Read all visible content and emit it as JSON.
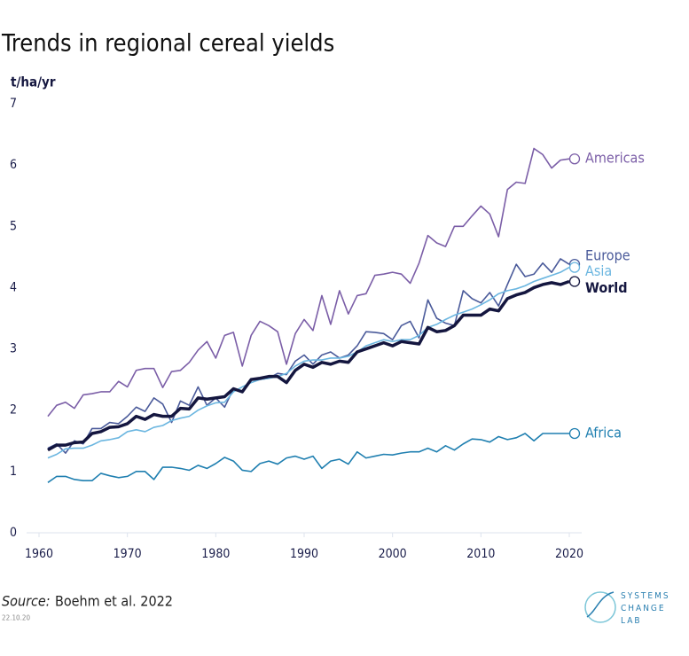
{
  "chart_data": {
    "type": "line",
    "title": "Trends in regional cereal yields",
    "y_label": "t/ha/yr",
    "source_label": "Source:",
    "source": "Boehm et al. 2022",
    "date": "22.10.20",
    "logo": [
      "SYSTEMS",
      "CHANGE",
      "LAB"
    ],
    "xlim": [
      1960,
      2020
    ],
    "xticks": [
      1960,
      1970,
      1980,
      1990,
      2000,
      2010,
      2020
    ],
    "ylim": [
      0,
      7
    ],
    "yticks": [
      0,
      1,
      2,
      3,
      4,
      5,
      6,
      7
    ],
    "grid": false,
    "x": [
      1961,
      1962,
      1963,
      1964,
      1965,
      1966,
      1967,
      1968,
      1969,
      1970,
      1971,
      1972,
      1973,
      1974,
      1975,
      1976,
      1977,
      1978,
      1979,
      1980,
      1981,
      1982,
      1983,
      1984,
      1985,
      1986,
      1987,
      1988,
      1989,
      1990,
      1991,
      1992,
      1993,
      1994,
      1995,
      1996,
      1997,
      1998,
      1999,
      2000,
      2001,
      2002,
      2003,
      2004,
      2005,
      2006,
      2007,
      2008,
      2009,
      2010,
      2011,
      2012,
      2013,
      2014,
      2015,
      2016,
      2017,
      2018,
      2019,
      2020
    ],
    "series": [
      {
        "name": "Americas",
        "color": "#7b5ea7",
        "values": [
          1.9,
          2.08,
          2.13,
          2.03,
          2.25,
          2.27,
          2.3,
          2.3,
          2.47,
          2.38,
          2.65,
          2.68,
          2.68,
          2.37,
          2.63,
          2.65,
          2.78,
          2.98,
          3.12,
          2.85,
          3.22,
          3.27,
          2.72,
          3.22,
          3.45,
          3.38,
          3.28,
          2.75,
          3.25,
          3.48,
          3.3,
          3.87,
          3.4,
          3.95,
          3.57,
          3.87,
          3.9,
          4.2,
          4.22,
          4.25,
          4.22,
          4.07,
          4.4,
          4.85,
          4.73,
          4.67,
          5.0,
          5.0,
          5.17,
          5.33,
          5.2,
          4.83,
          5.6,
          5.72,
          5.7,
          6.27,
          6.17,
          5.95,
          6.08,
          6.1
        ]
      },
      {
        "name": "Europe",
        "color": "#4a5a9a",
        "values": [
          1.38,
          1.45,
          1.3,
          1.5,
          1.45,
          1.7,
          1.7,
          1.8,
          1.78,
          1.9,
          2.05,
          1.98,
          2.2,
          2.1,
          1.8,
          2.15,
          2.08,
          2.38,
          2.08,
          2.2,
          2.05,
          2.35,
          2.3,
          2.5,
          2.5,
          2.52,
          2.6,
          2.58,
          2.8,
          2.9,
          2.75,
          2.9,
          2.95,
          2.85,
          2.9,
          3.05,
          3.28,
          3.27,
          3.25,
          3.15,
          3.38,
          3.45,
          3.18,
          3.8,
          3.5,
          3.42,
          3.38,
          3.95,
          3.82,
          3.75,
          3.92,
          3.7,
          4.05,
          4.38,
          4.18,
          4.22,
          4.4,
          4.25,
          4.47,
          4.38
        ]
      },
      {
        "name": "Asia",
        "color": "#6bb6e0",
        "values": [
          1.22,
          1.28,
          1.37,
          1.38,
          1.38,
          1.43,
          1.5,
          1.52,
          1.55,
          1.65,
          1.68,
          1.65,
          1.72,
          1.75,
          1.83,
          1.87,
          1.9,
          2.0,
          2.07,
          2.12,
          2.13,
          2.3,
          2.38,
          2.45,
          2.5,
          2.52,
          2.55,
          2.6,
          2.72,
          2.8,
          2.82,
          2.82,
          2.85,
          2.85,
          2.88,
          2.95,
          3.05,
          3.1,
          3.15,
          3.12,
          3.15,
          3.15,
          3.22,
          3.35,
          3.4,
          3.48,
          3.55,
          3.6,
          3.65,
          3.72,
          3.8,
          3.9,
          3.95,
          3.98,
          4.03,
          4.1,
          4.15,
          4.2,
          4.25,
          4.33
        ]
      },
      {
        "name": "World",
        "color": "#14163f",
        "values": [
          1.35,
          1.43,
          1.43,
          1.47,
          1.48,
          1.62,
          1.65,
          1.72,
          1.73,
          1.78,
          1.9,
          1.85,
          1.93,
          1.9,
          1.9,
          2.03,
          2.02,
          2.2,
          2.18,
          2.2,
          2.22,
          2.35,
          2.3,
          2.5,
          2.52,
          2.55,
          2.55,
          2.45,
          2.65,
          2.75,
          2.7,
          2.78,
          2.75,
          2.8,
          2.78,
          2.95,
          3.0,
          3.05,
          3.1,
          3.05,
          3.12,
          3.1,
          3.08,
          3.35,
          3.28,
          3.3,
          3.38,
          3.55,
          3.55,
          3.55,
          3.65,
          3.62,
          3.82,
          3.88,
          3.92,
          4.0,
          4.05,
          4.08,
          4.05,
          4.1
        ]
      },
      {
        "name": "Africa",
        "color": "#1f7fb0",
        "values": [
          0.82,
          0.92,
          0.92,
          0.87,
          0.85,
          0.85,
          0.97,
          0.93,
          0.9,
          0.92,
          1.0,
          1.0,
          0.87,
          1.07,
          1.07,
          1.05,
          1.02,
          1.1,
          1.05,
          1.13,
          1.23,
          1.17,
          1.02,
          1.0,
          1.13,
          1.17,
          1.12,
          1.22,
          1.25,
          1.2,
          1.25,
          1.05,
          1.17,
          1.2,
          1.12,
          1.32,
          1.22,
          1.25,
          1.28,
          1.27,
          1.3,
          1.32,
          1.32,
          1.38,
          1.32,
          1.42,
          1.35,
          1.45,
          1.53,
          1.52,
          1.48,
          1.57,
          1.52,
          1.55,
          1.62,
          1.5,
          1.62,
          1.62,
          1.62,
          1.62
        ]
      }
    ]
  }
}
